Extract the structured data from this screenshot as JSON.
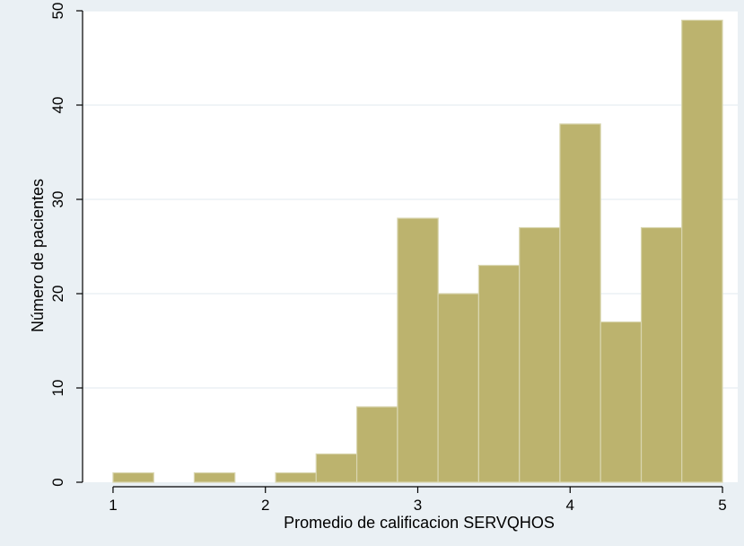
{
  "chart_data": {
    "type": "bar",
    "title": "",
    "xlabel": "Promedio de calificacion SERVQHOS",
    "ylabel": "Número de pacientes",
    "xlim": [
      0.8,
      5.1
    ],
    "ylim": [
      0,
      50
    ],
    "xticks": [
      1,
      2,
      3,
      4,
      5
    ],
    "yticks": [
      0,
      10,
      20,
      30,
      40,
      50
    ],
    "bin_width": 0.267,
    "bins": [
      {
        "start": 1.0,
        "count": 1
      },
      {
        "start": 1.533,
        "count": 1
      },
      {
        "start": 2.067,
        "count": 1
      },
      {
        "start": 2.333,
        "count": 3
      },
      {
        "start": 2.6,
        "count": 8
      },
      {
        "start": 2.867,
        "count": 28
      },
      {
        "start": 3.133,
        "count": 20
      },
      {
        "start": 3.4,
        "count": 23
      },
      {
        "start": 3.667,
        "count": 27
      },
      {
        "start": 3.933,
        "count": 38
      },
      {
        "start": 4.2,
        "count": 17
      },
      {
        "start": 4.467,
        "count": 27
      },
      {
        "start": 4.733,
        "count": 49
      }
    ],
    "grid": true,
    "colors": {
      "background": "#eaf0f4",
      "plot_area": "#ffffff",
      "bar_fill": "#bcb36e",
      "bar_stroke": "#d9d6b0",
      "grid": "#e8eef2",
      "axis": "#000000"
    }
  }
}
